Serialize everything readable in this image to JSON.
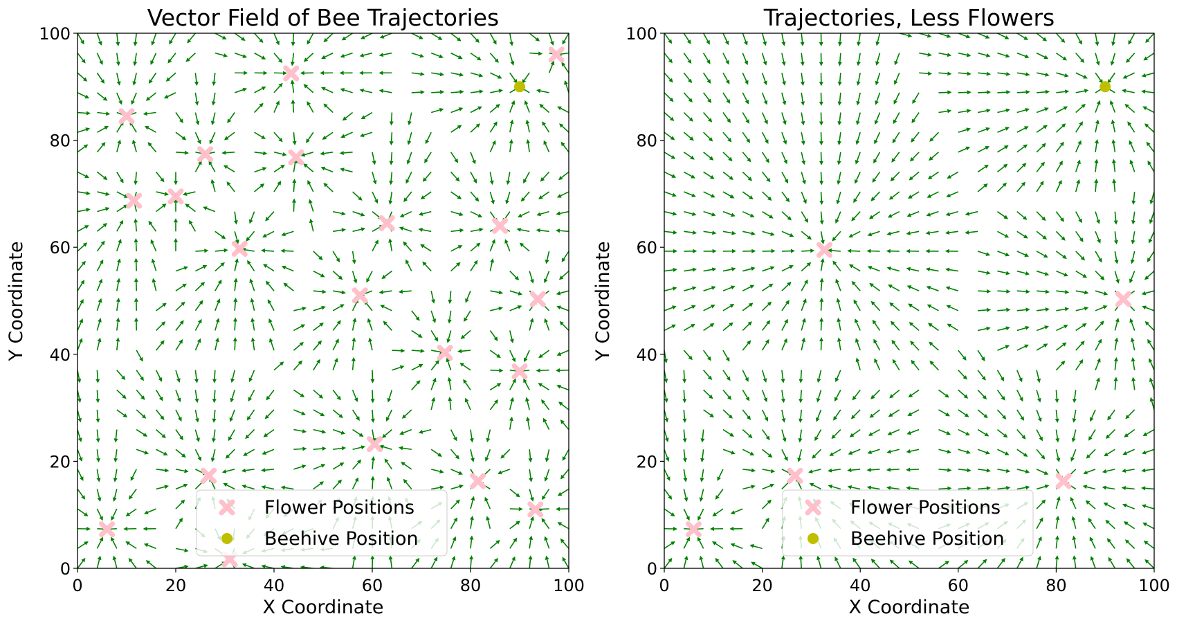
{
  "chart_data": [
    {
      "type": "quiver",
      "title": "Vector Field of Bee Trajectories",
      "xlabel": "X Coordinate",
      "ylabel": "Y Coordinate",
      "xlim": [
        0,
        100
      ],
      "ylim": [
        0,
        100
      ],
      "xticks": [
        "0",
        "20",
        "40",
        "60",
        "80",
        "100"
      ],
      "yticks": [
        "0",
        "20",
        "40",
        "60",
        "80",
        "100"
      ],
      "grid": false,
      "legend_position": "lower center",
      "arrow_color": "#008000",
      "flower_color": "#ffc0cb",
      "beehive_color": "#bfbf00",
      "legend": [
        "Flower Positions",
        "Beehive Position"
      ],
      "beehive": [
        90,
        90
      ],
      "flowers": [
        [
          10,
          84.5
        ],
        [
          11.5,
          68.7
        ],
        [
          20,
          69.5
        ],
        [
          26,
          77.4
        ],
        [
          33,
          59.7
        ],
        [
          43.5,
          92.5
        ],
        [
          44.5,
          76.8
        ],
        [
          57.5,
          51
        ],
        [
          63,
          64.5
        ],
        [
          86,
          64
        ],
        [
          93.7,
          50.3
        ],
        [
          74.8,
          40.3
        ],
        [
          90,
          36.8
        ],
        [
          60.5,
          23.2
        ],
        [
          81.5,
          16.3
        ],
        [
          93.2,
          11
        ],
        [
          26.7,
          17.3
        ],
        [
          6,
          7.3
        ],
        [
          31,
          1.7
        ],
        [
          97.5,
          96
        ]
      ]
    },
    {
      "type": "quiver",
      "title": "Trajectories, Less Flowers",
      "xlabel": "X Coordinate",
      "ylabel": "Y Coordinate",
      "xlim": [
        0,
        100
      ],
      "ylim": [
        0,
        100
      ],
      "xticks": [
        "0",
        "20",
        "40",
        "60",
        "80",
        "100"
      ],
      "yticks": [
        "0",
        "20",
        "40",
        "60",
        "80",
        "100"
      ],
      "grid": false,
      "legend_position": "lower center",
      "arrow_color": "#008000",
      "flower_color": "#ffc0cb",
      "beehive_color": "#bfbf00",
      "legend": [
        "Flower Positions",
        "Beehive Position"
      ],
      "beehive": [
        90,
        90
      ],
      "flowers": [
        [
          32.7,
          59.5
        ],
        [
          93.7,
          50.3
        ],
        [
          26.7,
          17.3
        ],
        [
          81.5,
          16.3
        ],
        [
          6,
          7.3
        ]
      ]
    }
  ]
}
